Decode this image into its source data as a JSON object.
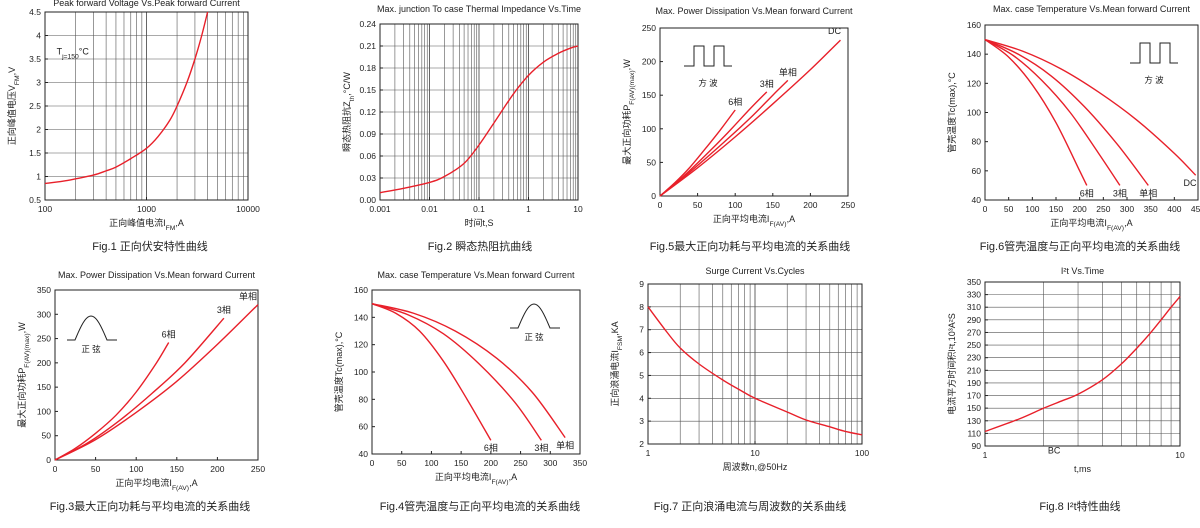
{
  "chart_data": [
    {
      "id": "fig1",
      "type": "line",
      "title": "Peak forward Voltage Vs.Peak forward Current",
      "caption": "Fig.1 正向伏安特性曲线",
      "xlabel": "正向峰值电流I_FM,A",
      "ylabel": "正向峰值电压V_FM,V",
      "xscale": "log",
      "xlim": [
        100,
        10000
      ],
      "ylim": [
        0.5,
        4.5
      ],
      "xticks": [
        100,
        1000,
        10000
      ],
      "xtick_labels": [
        "100",
        "1000",
        "10000"
      ],
      "yticks": [
        0.5,
        1,
        1.5,
        2,
        2.5,
        3,
        3.5,
        4,
        4.5
      ],
      "ytick_labels": [
        "0.5",
        "1",
        "1.5",
        "2",
        "2.5",
        "3",
        "3.5",
        "4",
        "4.5"
      ],
      "grid": true,
      "annotations": [
        {
          "text": "T_j=150°C",
          "x": 130,
          "y": 3.6
        }
      ],
      "series": [
        {
          "x": [
            100,
            150,
            200,
            300,
            400,
            500,
            700,
            1000,
            1300,
            1700,
            2000,
            2500,
            3000,
            3500,
            4000
          ],
          "y": [
            0.85,
            0.9,
            0.95,
            1.03,
            1.12,
            1.2,
            1.38,
            1.6,
            1.85,
            2.2,
            2.5,
            3.0,
            3.5,
            4.0,
            4.5
          ]
        }
      ]
    },
    {
      "id": "fig2",
      "type": "line",
      "title": "Max. junction To case Thermal Impedance Vs.Time",
      "caption": "Fig.2 瞬态热阻抗曲线",
      "xlabel": "时间t,S",
      "ylabel": "瞬态热阻抗Z_th,°C/W",
      "xscale": "log",
      "xlim": [
        0.001,
        10
      ],
      "ylim": [
        0,
        0.24
      ],
      "xticks": [
        0.001,
        0.01,
        0.1,
        1,
        10
      ],
      "xtick_labels": [
        "0.001",
        "0.01",
        "0.1",
        "1",
        "10"
      ],
      "yticks": [
        0,
        0.03,
        0.06,
        0.09,
        0.12,
        0.15,
        0.18,
        0.21,
        0.24
      ],
      "ytick_labels": [
        "0.00",
        "0.03",
        "0.06",
        "0.09",
        "0.12",
        "0.15",
        "0.18",
        "0.21",
        "0.24"
      ],
      "grid": true,
      "series": [
        {
          "x": [
            0.001,
            0.003,
            0.01,
            0.02,
            0.05,
            0.1,
            0.2,
            0.5,
            1,
            2,
            4,
            7,
            10
          ],
          "y": [
            0.01,
            0.016,
            0.024,
            0.032,
            0.05,
            0.075,
            0.105,
            0.145,
            0.17,
            0.188,
            0.2,
            0.207,
            0.21
          ]
        }
      ]
    },
    {
      "id": "fig5",
      "type": "line",
      "title": "Max. Power Dissipation Vs.Mean forward Current",
      "caption": "Fig.5最大正向功耗与平均电流的关系曲线",
      "xlabel": "正向平均电流I_F(AV),A",
      "ylabel": "最大正向功耗P_F(AV)(max),W",
      "xlim": [
        0,
        250
      ],
      "ylim": [
        0,
        250
      ],
      "xticks": [
        0,
        50,
        100,
        150,
        200,
        250
      ],
      "xtick_labels": [
        "0",
        "50",
        "100",
        "150",
        "200",
        "250"
      ],
      "yticks": [
        0,
        50,
        100,
        150,
        200,
        250
      ],
      "ytick_labels": [
        "0",
        "50",
        "100",
        "150",
        "200",
        "250"
      ],
      "grid": false,
      "inset": "square",
      "inset_label": "方 波",
      "series": [
        {
          "name": "6相",
          "x": [
            0,
            20,
            40,
            60,
            80,
            100
          ],
          "y": [
            0,
            20,
            43,
            70,
            98,
            128
          ]
        },
        {
          "name": "3相",
          "x": [
            0,
            30,
            60,
            90,
            120,
            142
          ],
          "y": [
            0,
            28,
            60,
            94,
            130,
            155
          ]
        },
        {
          "name": "单相",
          "x": [
            0,
            40,
            80,
            120,
            150,
            170
          ],
          "y": [
            0,
            36,
            75,
            116,
            150,
            172
          ]
        },
        {
          "name": "DC",
          "x": [
            0,
            50,
            100,
            150,
            200,
            240
          ],
          "y": [
            0,
            42,
            88,
            137,
            188,
            232
          ]
        }
      ]
    },
    {
      "id": "fig6",
      "type": "line",
      "title": "Max. case Temperature Vs.Mean forward Current",
      "caption": "Fig.6管壳温度与正向平均电流的关系曲线",
      "xlabel": "正向平均电流I_F(AV),A",
      "ylabel": "管壳温度Tc(max),°C",
      "xlim": [
        0,
        450
      ],
      "ylim": [
        40,
        160
      ],
      "xticks": [
        0,
        50,
        100,
        150,
        200,
        250,
        300,
        350,
        400,
        450
      ],
      "xtick_labels": [
        "0",
        "50",
        "100",
        "150",
        "200",
        "250",
        "300",
        "350",
        "400",
        "450"
      ],
      "yticks": [
        40,
        60,
        80,
        100,
        120,
        140,
        160
      ],
      "ytick_labels": [
        "40",
        "60",
        "80",
        "100",
        "120",
        "140",
        "160"
      ],
      "grid": false,
      "inset": "square",
      "inset_label": "方 波",
      "series": [
        {
          "name": "6相",
          "x": [
            0,
            50,
            100,
            150,
            200,
            215
          ],
          "y": [
            150,
            138,
            119,
            93,
            60,
            50
          ]
        },
        {
          "name": "3相",
          "x": [
            0,
            60,
            120,
            180,
            240,
            285
          ],
          "y": [
            150,
            139,
            122,
            100,
            72,
            50
          ]
        },
        {
          "name": "单相",
          "x": [
            0,
            70,
            140,
            210,
            280,
            345
          ],
          "y": [
            150,
            140,
            125,
            104,
            78,
            50
          ]
        },
        {
          "name": "DC",
          "x": [
            0,
            80,
            160,
            240,
            320,
            400,
            445
          ],
          "y": [
            150,
            142,
            130,
            114,
            95,
            72,
            57
          ]
        }
      ]
    },
    {
      "id": "fig3",
      "type": "line",
      "title": "Max. Power Dissipation Vs.Mean forward Current",
      "caption": "Fig.3最大正向功耗与平均电流的关系曲线",
      "xlabel": "正向平均电流I_F(AV),A",
      "ylabel": "最大正向功耗P_F(AV)(max),W",
      "xlim": [
        0,
        250
      ],
      "ylim": [
        0,
        350
      ],
      "xticks": [
        0,
        50,
        100,
        150,
        200,
        250
      ],
      "xtick_labels": [
        "0",
        "50",
        "100",
        "150",
        "200",
        "250"
      ],
      "yticks": [
        0,
        50,
        100,
        150,
        200,
        250,
        300,
        350
      ],
      "ytick_labels": [
        "0",
        "50",
        "100",
        "150",
        "200",
        "250",
        "300",
        "350"
      ],
      "grid": false,
      "inset": "sine",
      "inset_label": "正 弦",
      "series": [
        {
          "name": "6相",
          "x": [
            0,
            25,
            50,
            75,
            100,
            125,
            140
          ],
          "y": [
            0,
            24,
            55,
            92,
            140,
            200,
            242
          ]
        },
        {
          "name": "3相",
          "x": [
            0,
            40,
            80,
            120,
            160,
            208
          ],
          "y": [
            0,
            35,
            82,
            138,
            200,
            292
          ]
        },
        {
          "name": "单相",
          "x": [
            0,
            50,
            100,
            150,
            200,
            250
          ],
          "y": [
            0,
            42,
            98,
            162,
            238,
            320
          ]
        }
      ]
    },
    {
      "id": "fig4",
      "type": "line",
      "title": "Max. case Temperature Vs.Mean forward Current",
      "caption": "Fig.4管壳温度与正向平均电流的关系曲线",
      "xlabel": "正向平均电流I_F(AV),A",
      "ylabel": "管壳温度Tc(max),°C",
      "xlim": [
        0,
        350
      ],
      "ylim": [
        40,
        160
      ],
      "xticks": [
        0,
        50,
        100,
        150,
        200,
        250,
        300,
        350
      ],
      "xtick_labels": [
        "0",
        "50",
        "100",
        "150",
        "200",
        "250",
        "300",
        "350"
      ],
      "yticks": [
        40,
        60,
        80,
        100,
        120,
        140,
        160
      ],
      "ytick_labels": [
        "40",
        "60",
        "80",
        "100",
        "120",
        "140",
        "160"
      ],
      "grid": false,
      "inset": "sine",
      "inset_label": "正 弦",
      "series": [
        {
          "name": "6相",
          "x": [
            0,
            40,
            80,
            120,
            160,
            200
          ],
          "y": [
            150,
            143,
            130,
            108,
            80,
            50
          ]
        },
        {
          "name": "3相",
          "x": [
            0,
            60,
            120,
            180,
            240,
            285
          ],
          "y": [
            150,
            142,
            128,
            106,
            78,
            50
          ]
        },
        {
          "name": "单相",
          "x": [
            0,
            70,
            140,
            210,
            270,
            325
          ],
          "y": [
            150,
            143,
            130,
            110,
            85,
            52
          ]
        }
      ]
    },
    {
      "id": "fig7",
      "type": "line",
      "title": "Surge Current Vs.Cycles",
      "caption": "Fig.7 正向浪涌电流与周波数的关系曲线",
      "xlabel": "周波数n,@50Hz",
      "ylabel": "正向浪涌电流I_FSM,KA",
      "xscale": "log",
      "xlim": [
        1,
        100
      ],
      "ylim": [
        2,
        9
      ],
      "xticks": [
        1,
        10,
        100
      ],
      "xtick_labels": [
        "1",
        "10",
        "100"
      ],
      "yticks": [
        2,
        3,
        4,
        5,
        6,
        7,
        8,
        9
      ],
      "ytick_labels": [
        "2",
        "3",
        "4",
        "5",
        "6",
        "7",
        "8",
        "9"
      ],
      "grid": true,
      "series": [
        {
          "x": [
            1,
            1.5,
            2,
            3,
            5,
            7,
            10,
            20,
            30,
            50,
            70,
            100
          ],
          "y": [
            8.0,
            6.9,
            6.2,
            5.5,
            4.8,
            4.4,
            4.0,
            3.4,
            3.05,
            2.75,
            2.55,
            2.4
          ]
        }
      ]
    },
    {
      "id": "fig8",
      "type": "line",
      "title": "I²t Vs.Time",
      "caption": "Fig.8 I²t特性曲线",
      "xlabel": "t,ms",
      "ylabel": "电流平方时间积I²t,10³A²S",
      "xscale": "log",
      "xlim": [
        1,
        10
      ],
      "ylim": [
        90,
        350
      ],
      "xticks": [
        1,
        10
      ],
      "xtick_labels": [
        "1",
        "10"
      ],
      "yticks": [
        90,
        110,
        130,
        150,
        170,
        190,
        210,
        230,
        250,
        270,
        290,
        310,
        330,
        350
      ],
      "ytick_labels": [
        "90",
        "110",
        "130",
        "150",
        "170",
        "190",
        "210",
        "230",
        "250",
        "270",
        "290",
        "310",
        "330",
        "350"
      ],
      "grid": true,
      "annotations": [
        {
          "text": "BC",
          "x": 2.1,
          "y": 78
        }
      ],
      "series": [
        {
          "x": [
            1,
            1.5,
            2,
            2.5,
            3,
            4,
            5,
            6,
            7,
            8,
            9,
            10
          ],
          "y": [
            113,
            133,
            150,
            162,
            172,
            195,
            220,
            245,
            268,
            290,
            310,
            327
          ]
        }
      ]
    }
  ],
  "style": {
    "curve_color": "#e8202a",
    "axis_color": "#222222",
    "grid_color": "#555555"
  }
}
